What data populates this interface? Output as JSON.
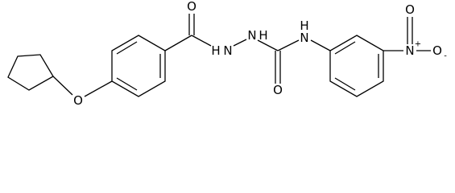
{
  "atoms": [
    {
      "label": "O"
    },
    {
      "label": "O"
    },
    {
      "label": "H"
    },
    {
      "label": "N"
    },
    {
      "label": "N"
    },
    {
      "label": "H"
    },
    {
      "label": "O"
    },
    {
      "label": "H"
    },
    {
      "label": "N"
    },
    {
      "label": "N"
    },
    {
      "label": "+"
    },
    {
      "label": "O"
    },
    {
      "label": "-"
    },
    {
      "label": "O"
    }
  ]
}
